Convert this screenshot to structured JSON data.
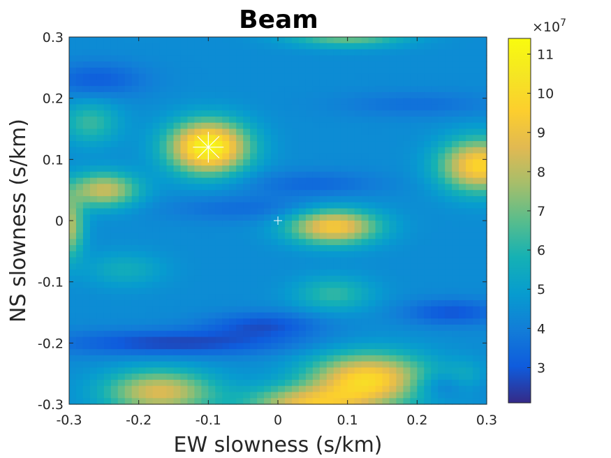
{
  "figure": {
    "title": "Beam",
    "xlabel": "EW slowness (s/km)",
    "ylabel": "NS slowness (s/km)"
  },
  "chart_data": {
    "type": "heatmap",
    "title": "Beam",
    "xlabel": "EW slowness (s/km)",
    "ylabel": "NS slowness (s/km)",
    "xlim": [
      -0.3,
      0.3
    ],
    "ylim": [
      -0.3,
      0.3
    ],
    "x_ticks": [
      "-0.3",
      "-0.2",
      "-0.1",
      "0",
      "0.1",
      "0.2",
      "0.3"
    ],
    "y_ticks": [
      "-0.3",
      "-0.2",
      "-0.1",
      "0",
      "0.1",
      "0.2",
      "0.3"
    ],
    "grid_cells": 60,
    "colormap": "parula",
    "colorbar": {
      "range": [
        2.1,
        11.4
      ],
      "ticks": [
        "3",
        "4",
        "5",
        "6",
        "7",
        "8",
        "9",
        "10",
        "11"
      ],
      "exponent_label": "×10",
      "exponent": "7"
    },
    "background_level": 4.4,
    "features": [
      {
        "x": -0.1,
        "y": 0.12,
        "sx": 0.04,
        "sy": 0.03,
        "amp": 6.8
      },
      {
        "x": 0.29,
        "y": 0.09,
        "sx": 0.04,
        "sy": 0.03,
        "amp": 5.4
      },
      {
        "x": 0.08,
        "y": -0.01,
        "sx": 0.045,
        "sy": 0.02,
        "amp": 5.0
      },
      {
        "x": -0.25,
        "y": 0.05,
        "sx": 0.035,
        "sy": 0.02,
        "amp": 3.9
      },
      {
        "x": 0.13,
        "y": -0.26,
        "sx": 0.06,
        "sy": 0.03,
        "amp": 5.5
      },
      {
        "x": -0.17,
        "y": -0.28,
        "sx": 0.055,
        "sy": 0.025,
        "amp": 4.2
      },
      {
        "x": 0.04,
        "y": -0.3,
        "sx": 0.06,
        "sy": 0.02,
        "amp": 4.0
      },
      {
        "x": -0.3,
        "y": -0.01,
        "sx": 0.015,
        "sy": 0.035,
        "amp": 3.5
      },
      {
        "x": 0.1,
        "y": 0.3,
        "sx": 0.06,
        "sy": 0.012,
        "amp": 2.6
      },
      {
        "x": -0.27,
        "y": 0.16,
        "sx": 0.03,
        "sy": 0.025,
        "amp": 1.9
      },
      {
        "x": 0.08,
        "y": -0.12,
        "sx": 0.04,
        "sy": 0.02,
        "amp": 1.8
      },
      {
        "x": -0.22,
        "y": -0.08,
        "sx": 0.04,
        "sy": 0.02,
        "amp": 1.2
      },
      {
        "x": 0.27,
        "y": -0.26,
        "sx": 0.02,
        "sy": 0.02,
        "amp": 1.2
      },
      {
        "x": -0.15,
        "y": -0.2,
        "sx": 0.12,
        "sy": 0.015,
        "amp": -1.8
      },
      {
        "x": 0.25,
        "y": -0.15,
        "sx": 0.05,
        "sy": 0.015,
        "amp": -1.5
      },
      {
        "x": -0.02,
        "y": -0.17,
        "sx": 0.06,
        "sy": 0.015,
        "amp": -1.5
      },
      {
        "x": -0.26,
        "y": 0.23,
        "sx": 0.05,
        "sy": 0.02,
        "amp": -1.3
      },
      {
        "x": 0.05,
        "y": 0.06,
        "sx": 0.07,
        "sy": 0.015,
        "amp": -1.0
      },
      {
        "x": -0.05,
        "y": 0.02,
        "sx": 0.08,
        "sy": 0.015,
        "amp": -0.9
      },
      {
        "x": 0.24,
        "y": -0.27,
        "sx": 0.04,
        "sy": 0.015,
        "amp": -1.3
      },
      {
        "x": 0.2,
        "y": 0.19,
        "sx": 0.08,
        "sy": 0.015,
        "amp": -0.8
      }
    ],
    "markers": [
      {
        "x": -0.1,
        "y": 0.12,
        "kind": "peak-star"
      },
      {
        "x": 0.0,
        "y": 0.0,
        "kind": "origin-cross"
      }
    ]
  }
}
